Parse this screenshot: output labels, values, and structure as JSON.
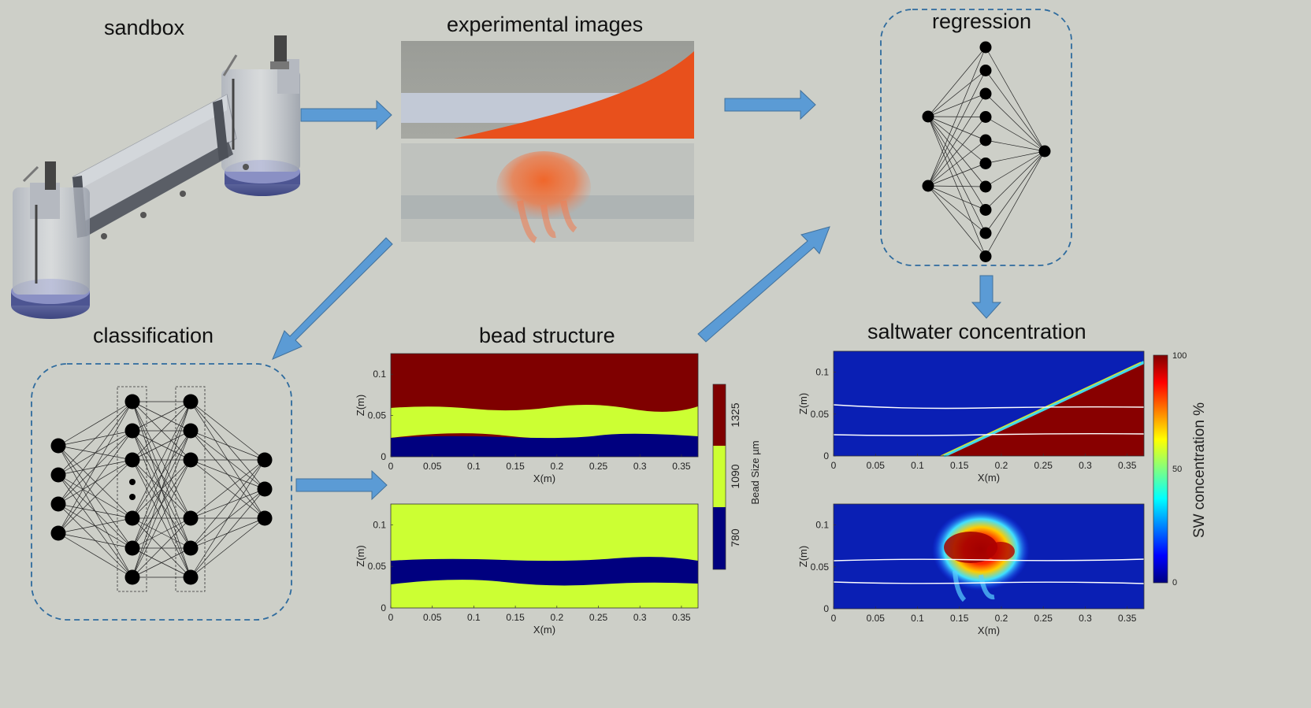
{
  "titles": {
    "sandbox": "sandbox",
    "experimental_images": "experimental images",
    "regression": "regression",
    "classification": "classification",
    "bead_structure": "bead structure",
    "saltwater_concentration": "saltwater concentration"
  },
  "bead_plot": {
    "xlabel": "X(m)",
    "ylabel": "Z(m)",
    "x_ticks": [
      "0",
      "0.05",
      "0.1",
      "0.15",
      "0.2",
      "0.25",
      "0.3",
      "0.35"
    ],
    "y_ticks": [
      "0",
      "0.05",
      "0.1"
    ],
    "colorbar_labels": [
      "1325",
      "1090",
      "780"
    ],
    "colorbar_title": "Bead Size µm",
    "colors": {
      "large": "#7f0000",
      "medium": "#ccff33",
      "small": "#00007f"
    }
  },
  "sw_plot": {
    "xlabel": "X(m)",
    "ylabel": "Z(m)",
    "x_ticks": [
      "0",
      "0.05",
      "0.1",
      "0.15",
      "0.2",
      "0.25",
      "0.3",
      "0.35"
    ],
    "y_ticks": [
      "0",
      "0.05",
      "0.1"
    ],
    "colorbar_ticks": [
      "100",
      "50",
      "0"
    ],
    "colorbar_title": "SW concentration %"
  },
  "chart_data": [
    {
      "type": "heatmap",
      "name": "bead structure (top)",
      "xlabel": "X(m)",
      "ylabel": "Z(m)",
      "xlim": [
        0,
        0.37
      ],
      "ylim": [
        0,
        0.125
      ],
      "layers": [
        {
          "bead_size_um": 780,
          "z_range": [
            0,
            0.025
          ]
        },
        {
          "bead_size_um": 1090,
          "z_range": [
            0.025,
            0.06
          ]
        },
        {
          "bead_size_um": 1325,
          "z_range": [
            0.06,
            0.125
          ]
        }
      ]
    },
    {
      "type": "heatmap",
      "name": "bead structure (bottom)",
      "xlabel": "X(m)",
      "ylabel": "Z(m)",
      "xlim": [
        0,
        0.37
      ],
      "ylim": [
        0,
        0.125
      ],
      "layers": [
        {
          "bead_size_um": 1090,
          "z_range": [
            0,
            0.03
          ]
        },
        {
          "bead_size_um": 780,
          "z_range": [
            0.03,
            0.058
          ]
        },
        {
          "bead_size_um": 1090,
          "z_range": [
            0.058,
            0.125
          ]
        }
      ]
    },
    {
      "type": "heatmap",
      "name": "saltwater concentration (top)",
      "xlabel": "X(m)",
      "ylabel": "Z(m)",
      "xlim": [
        0,
        0.37
      ],
      "ylim": [
        0,
        0.125
      ],
      "interface_line": {
        "x": [
          0.135,
          0.37
        ],
        "z": [
          0,
          0.11
        ]
      },
      "white_lines_z": [
        0.025,
        0.06
      ]
    },
    {
      "type": "heatmap",
      "name": "saltwater concentration (bottom)",
      "xlabel": "X(m)",
      "ylabel": "Z(m)",
      "xlim": [
        0,
        0.37
      ],
      "ylim": [
        0,
        0.125
      ],
      "plume_x_range": [
        0.14,
        0.23
      ],
      "white_lines_z": [
        0.03,
        0.058
      ]
    }
  ]
}
